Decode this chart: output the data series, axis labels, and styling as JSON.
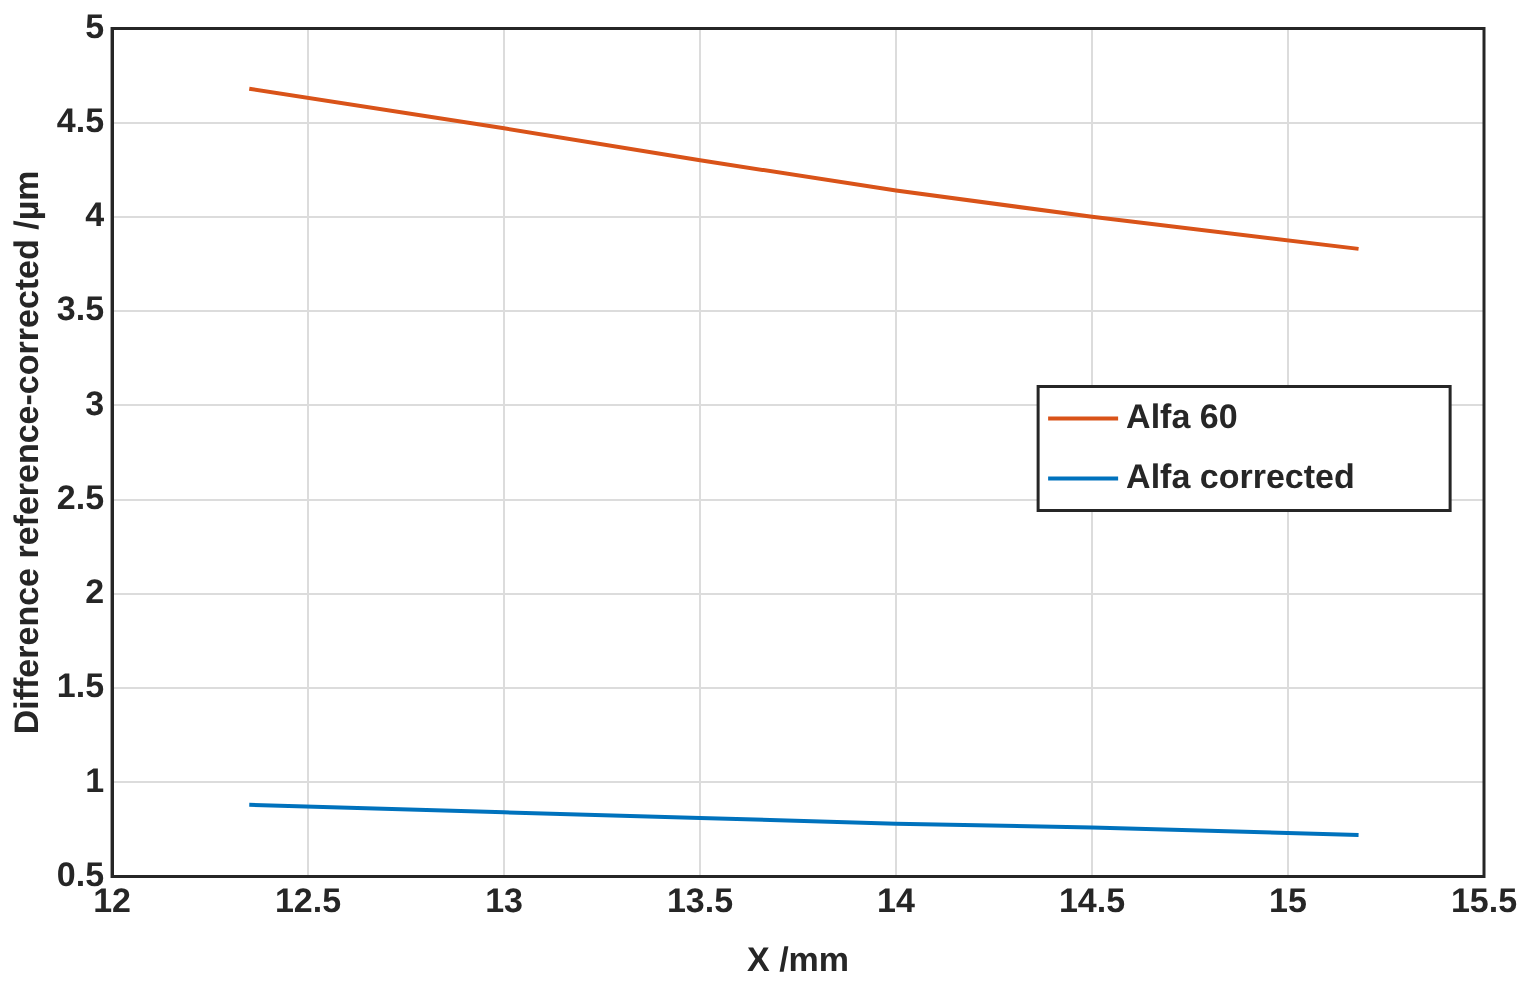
{
  "chart_data": {
    "type": "line",
    "xlabel": "X /mm",
    "ylabel": "Difference reference-corrected /µm",
    "xlim": [
      12,
      15.5
    ],
    "xticks": [
      12,
      12.5,
      13,
      13.5,
      14,
      14.5,
      15,
      15.5
    ],
    "ylim": [
      0.5,
      5
    ],
    "yticks": [
      0.5,
      1,
      1.5,
      2,
      2.5,
      3,
      3.5,
      4,
      4.5,
      5
    ],
    "grid": true,
    "legend": "right",
    "marker": "none",
    "line_style": "solid",
    "series": [
      {
        "name": "Alfa 60",
        "color": "#d95319",
        "x": [
          12.35,
          13,
          13.5,
          14,
          14.5,
          15.18
        ],
        "values": [
          4.68,
          4.47,
          4.3,
          4.14,
          4.0,
          3.83
        ]
      },
      {
        "name": "Alfa corrected",
        "color": "#0072bd",
        "x": [
          12.35,
          13,
          13.5,
          14,
          14.5,
          15.18
        ],
        "values": [
          0.88,
          0.84,
          0.81,
          0.78,
          0.76,
          0.72
        ]
      }
    ]
  }
}
